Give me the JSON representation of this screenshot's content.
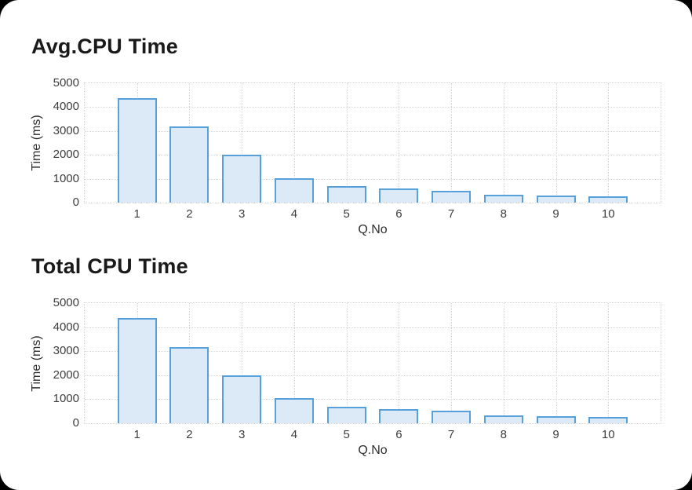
{
  "card": {
    "background": "#ffffff",
    "page_background": "#000000"
  },
  "chart_data": [
    {
      "type": "bar",
      "title": "Avg.CPU Time",
      "xlabel": "Q.No",
      "ylabel": "Time (ms)",
      "categories": [
        "1",
        "2",
        "3",
        "4",
        "5",
        "6",
        "7",
        "8",
        "9",
        "10"
      ],
      "values": [
        4370,
        3180,
        2000,
        1030,
        700,
        580,
        510,
        340,
        300,
        250
      ],
      "ylim": [
        0,
        5000
      ],
      "yticks": [
        0,
        1000,
        2000,
        3000,
        4000,
        5000
      ],
      "grid": "dotted",
      "legend": "none",
      "bar_fill": "#dce9f7",
      "bar_stroke": "#57a0d9",
      "grid_color": "#d8d8d8"
    },
    {
      "type": "bar",
      "title": "Total CPU Time",
      "xlabel": "Q.No",
      "ylabel": "Time (ms)",
      "categories": [
        "1",
        "2",
        "3",
        "4",
        "5",
        "6",
        "7",
        "8",
        "9",
        "10"
      ],
      "values": [
        4370,
        3180,
        2000,
        1030,
        700,
        580,
        510,
        340,
        300,
        250
      ],
      "ylim": [
        0,
        5000
      ],
      "yticks": [
        0,
        1000,
        2000,
        3000,
        4000,
        5000
      ],
      "grid": "dotted",
      "legend": "none",
      "bar_fill": "#dce9f7",
      "bar_stroke": "#57a0d9",
      "grid_color": "#d8d8d8"
    }
  ]
}
